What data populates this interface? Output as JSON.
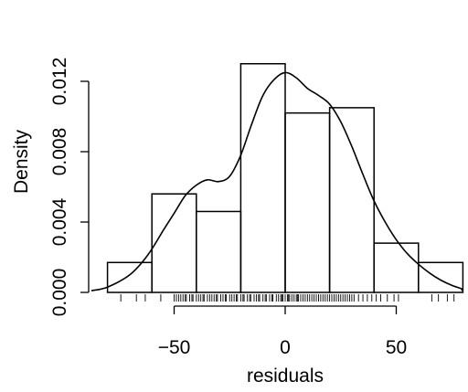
{
  "chart_data": {
    "type": "histogram",
    "title": "",
    "xlabel": "residuals",
    "ylabel": "Density",
    "xlim": [
      -80,
      80
    ],
    "ylim": [
      0,
      0.013
    ],
    "x_ticks": [
      -50,
      0,
      50
    ],
    "x_tick_labels": [
      "−50",
      "0",
      "50"
    ],
    "y_ticks": [
      0,
      0.004,
      0.008,
      0.012
    ],
    "y_tick_labels": [
      "0.000",
      "0.004",
      "0.008",
      "0.012"
    ],
    "grid": false,
    "legend": "none",
    "bins": [
      {
        "from": -80,
        "to": -60,
        "density": 0.0017
      },
      {
        "from": -60,
        "to": -40,
        "density": 0.0056
      },
      {
        "from": -40,
        "to": -20,
        "density": 0.0046
      },
      {
        "from": -20,
        "to": 0,
        "density": 0.013
      },
      {
        "from": 0,
        "to": 20,
        "density": 0.0102
      },
      {
        "from": 20,
        "to": 40,
        "density": 0.0105
      },
      {
        "from": 40,
        "to": 60,
        "density": 0.0028
      },
      {
        "from": 60,
        "to": 80,
        "density": 0.0017
      }
    ],
    "density_curve": {
      "x": [
        -88,
        -80,
        -70,
        -62,
        -55,
        -50,
        -45,
        -40,
        -35,
        -30,
        -25,
        -20,
        -15,
        -10,
        -5,
        0,
        5,
        10,
        15,
        20,
        25,
        30,
        35,
        40,
        45,
        50,
        55,
        60,
        65,
        70,
        75,
        80,
        85
      ],
      "y": [
        0.0001,
        0.0003,
        0.001,
        0.0021,
        0.0035,
        0.0045,
        0.0055,
        0.0061,
        0.0064,
        0.0063,
        0.0066,
        0.0078,
        0.0096,
        0.0112,
        0.0121,
        0.0125,
        0.0122,
        0.0116,
        0.0112,
        0.0107,
        0.0097,
        0.0083,
        0.0067,
        0.0052,
        0.004,
        0.003,
        0.0022,
        0.0016,
        0.0011,
        0.0007,
        0.0004,
        0.0002,
        0.0001
      ]
    },
    "rug": [
      -74,
      -67,
      -63,
      -56,
      -50,
      -49,
      -48,
      -47,
      -46,
      -45,
      -44.5,
      -43,
      -42,
      -41.5,
      -40,
      -39,
      -38,
      -37,
      -36.5,
      -35,
      -34,
      -33,
      -32,
      -31,
      -30.5,
      -29,
      -28,
      -27,
      -26.5,
      -25,
      -24,
      -23,
      -22,
      -21.5,
      -20,
      -19,
      -18.5,
      -17,
      -16,
      -15.5,
      -14,
      -13,
      -12,
      -11.5,
      -10,
      -9,
      -8.5,
      -7,
      -6,
      -5.5,
      -4,
      -3,
      -2,
      -1.5,
      -1,
      0,
      1,
      1.5,
      2,
      3,
      4,
      5,
      5.5,
      6,
      7,
      8,
      9,
      10,
      11,
      12,
      13,
      14,
      15,
      16,
      17,
      18,
      19,
      20,
      21,
      22,
      23,
      24,
      25,
      26,
      27,
      28,
      29,
      30,
      31,
      33,
      35,
      37,
      39,
      41,
      43,
      46,
      49,
      51,
      66,
      69,
      73,
      76
    ]
  }
}
